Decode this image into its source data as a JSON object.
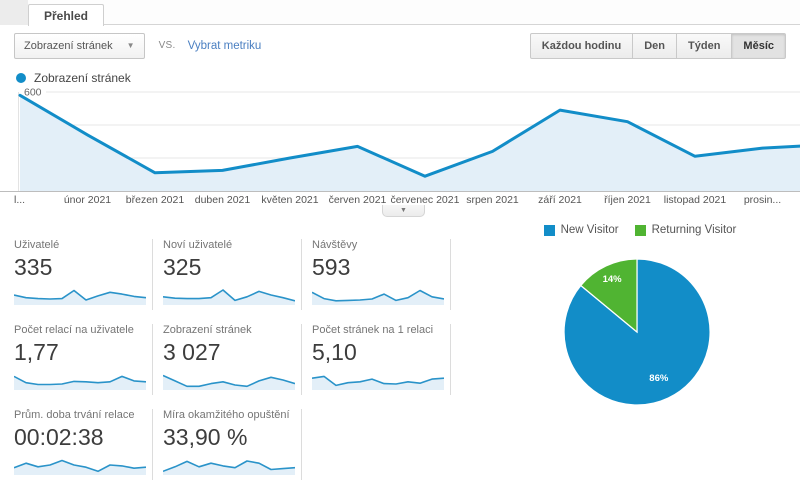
{
  "colors": {
    "series_blue": "#128dc8",
    "area_fill": "#e3eff8",
    "green": "#50b432",
    "link_blue": "#4a7fc1"
  },
  "tab": {
    "label": "Přehled"
  },
  "toolbar": {
    "metric_dropdown_value": "Zobrazení stránek",
    "vs_label": "vs.",
    "select_metric_link": "Vybrat metriku",
    "granularity_options": [
      "Každou hodinu",
      "Den",
      "Týden",
      "Měsíc"
    ],
    "granularity_selected": "Měsíc"
  },
  "series_legend_label": "Zobrazení stránek",
  "expander_glyph": "▼",
  "chart_data": [
    {
      "type": "line",
      "title": "Zobrazení stránek",
      "x_labels": [
        "l...",
        "únor 2021",
        "březen 2021",
        "duben 2021",
        "květen 2021",
        "červen 2021",
        "červenec 2021",
        "srpen 2021",
        "září 2021",
        "říjen 2021",
        "listopad 2021",
        "prosin..."
      ],
      "values": [
        580,
        340,
        110,
        125,
        200,
        270,
        90,
        240,
        490,
        420,
        210,
        260
      ],
      "right_edge_value": 272,
      "yticks": [
        200,
        400,
        600
      ],
      "ylim": [
        0,
        600
      ],
      "grid": true,
      "legend_position": "top-left"
    },
    {
      "type": "pie",
      "labels": [
        "New Visitor",
        "Returning Visitor"
      ],
      "values": [
        86,
        14
      ],
      "slice_labels": [
        "86%",
        "14%"
      ],
      "colors": [
        "#128dc8",
        "#50b432"
      ],
      "legend_position": "top"
    }
  ],
  "metrics": [
    {
      "label": "Uživatelé",
      "value": "335",
      "spark": [
        0.5,
        0.35,
        0.3,
        0.28,
        0.3,
        0.75,
        0.22,
        0.45,
        0.65,
        0.55,
        0.42,
        0.35
      ]
    },
    {
      "label": "Noví uživatelé",
      "value": "325",
      "spark": [
        0.4,
        0.32,
        0.3,
        0.3,
        0.35,
        0.78,
        0.2,
        0.4,
        0.7,
        0.5,
        0.35,
        0.18
      ]
    },
    {
      "label": "Návštěvy",
      "value": "593",
      "spark": [
        0.65,
        0.3,
        0.18,
        0.2,
        0.22,
        0.28,
        0.55,
        0.2,
        0.35,
        0.75,
        0.4,
        0.28
      ]
    },
    {
      "label": "Počet relací na uživatele",
      "value": "1,77",
      "spark": [
        0.7,
        0.35,
        0.25,
        0.25,
        0.28,
        0.42,
        0.4,
        0.35,
        0.4,
        0.7,
        0.45,
        0.4
      ]
    },
    {
      "label": "Zobrazení stránek",
      "value": "3 027",
      "spark": [
        0.75,
        0.45,
        0.15,
        0.15,
        0.3,
        0.4,
        0.22,
        0.15,
        0.45,
        0.65,
        0.5,
        0.3
      ]
    },
    {
      "label": "Počet stránek na 1 relaci",
      "value": "5,10",
      "spark": [
        0.6,
        0.7,
        0.2,
        0.35,
        0.4,
        0.55,
        0.3,
        0.28,
        0.4,
        0.32,
        0.55,
        0.6
      ]
    },
    {
      "label": "Prům. doba trvání relace",
      "value": "00:02:38",
      "spark": [
        0.35,
        0.6,
        0.4,
        0.5,
        0.75,
        0.5,
        0.38,
        0.15,
        0.5,
        0.45,
        0.32,
        0.38
      ]
    },
    {
      "label": "Míra okamžitého opuštění",
      "value": "33,90 %",
      "spark": [
        0.15,
        0.4,
        0.7,
        0.4,
        0.6,
        0.45,
        0.35,
        0.72,
        0.6,
        0.25,
        0.3,
        0.35
      ]
    }
  ],
  "metrics_rows": [
    [
      0,
      1,
      2
    ],
    [
      3,
      4,
      5
    ],
    [
      6,
      7
    ]
  ]
}
